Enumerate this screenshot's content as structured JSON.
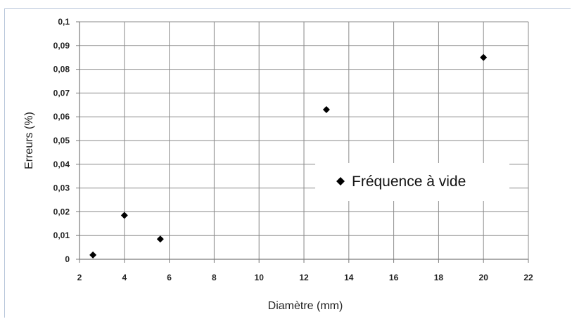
{
  "chart_data": {
    "type": "scatter",
    "title": "",
    "xlabel": "Diamètre (mm)",
    "ylabel": "Erreurs (%)",
    "xlim": [
      2,
      22
    ],
    "ylim": [
      0,
      0.1
    ],
    "x_ticks": [
      "2",
      "4",
      "6",
      "8",
      "10",
      "12",
      "14",
      "16",
      "18",
      "20",
      "22"
    ],
    "y_ticks": [
      "0",
      "0,01",
      "0,02",
      "0,03",
      "0,04",
      "0,05",
      "0,06",
      "0,07",
      "0,08",
      "0,09",
      "0,1"
    ],
    "grid": true,
    "legend_position": "right",
    "series": [
      {
        "name": "Fréquence à vide",
        "color": "#000000",
        "marker": "diamond",
        "points": [
          {
            "x": 2.6,
            "y": 0.0018
          },
          {
            "x": 4.0,
            "y": 0.0185
          },
          {
            "x": 5.6,
            "y": 0.0085
          },
          {
            "x": 13.0,
            "y": 0.063
          },
          {
            "x": 20.0,
            "y": 0.085
          }
        ]
      }
    ]
  }
}
